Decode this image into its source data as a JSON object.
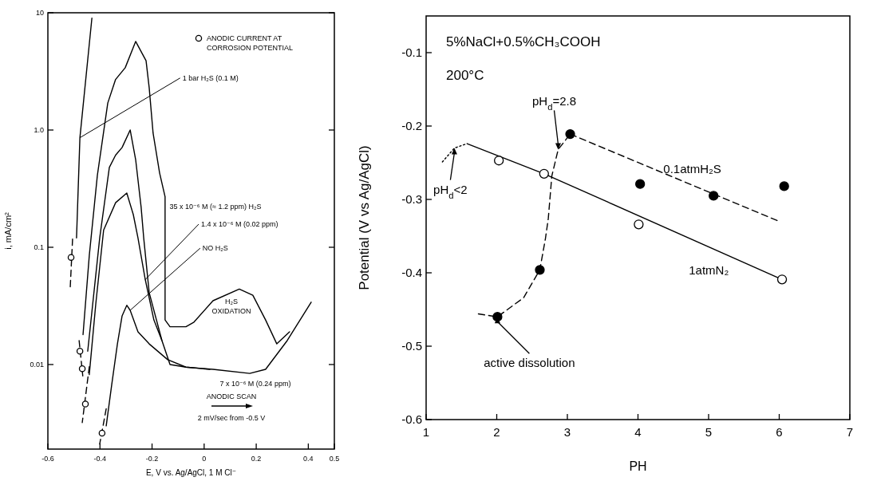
{
  "chart_data": [
    {
      "type": "line",
      "xlabel": "E, V vs. Ag/AgCl, 1 M Cl⁻",
      "ylabel": "i, mA/cm²",
      "log": "y",
      "xlim": [
        -0.6,
        0.5
      ],
      "xticks": [
        -0.6,
        -0.4,
        -0.2,
        0,
        0.2,
        0.4,
        0.5
      ],
      "ylim": [
        0.0019,
        10
      ],
      "yticks": [
        0.01,
        0.1,
        {
          "value": 1,
          "label": "1.0"
        },
        10
      ],
      "legend": "top right",
      "annotations": [
        "H₂S OXIDATION",
        "ANODIC SCAN",
        "2 mV/sec from -0.5 V"
      ],
      "series": [
        {
          "name": "1 bar H₂S (0.1 M)",
          "type": "line",
          "line_style": "solid",
          "color": "#000000",
          "x": [
            -0.49,
            -0.477,
            -0.431
          ],
          "values": [
            0.12,
            0.86,
            9
          ]
        },
        {
          "name": "35 x 10⁻⁶ M (≈ 1.2 ppm) H₂S",
          "type": "line",
          "line_style": "solid",
          "color": "#000000",
          "x": [
            -0.465,
            -0.441,
            -0.41,
            -0.37,
            -0.34,
            -0.303,
            -0.263,
            -0.223,
            -0.211,
            -0.196,
            -0.171,
            -0.15,
            -0.15,
            -0.131,
            -0.07,
            -0.039,
            0.034,
            0.135,
            0.187,
            0.236,
            0.279,
            0.328
          ],
          "values": [
            0.018,
            0.085,
            0.41,
            1.7,
            2.7,
            3.4,
            5.7,
            3.9,
            2.3,
            0.94,
            0.43,
            0.27,
            0.024,
            0.021,
            0.021,
            0.023,
            0.035,
            0.044,
            0.039,
            0.024,
            0.015,
            0.019
          ]
        },
        {
          "name": "7 x 10⁻⁶ M (0.24 ppm)",
          "type": "line",
          "line_style": "solid",
          "color": "#000000",
          "x": [
            -0.447,
            -0.401,
            -0.364,
            -0.34,
            -0.315,
            -0.284,
            -0.263,
            -0.242,
            -0.232,
            -0.211,
            -0.162,
            -0.131,
            -0.07,
            0.034,
            0.175,
            0.236,
            0.319,
            0.411
          ],
          "values": [
            0.013,
            0.12,
            0.48,
            0.61,
            0.71,
            1.0,
            0.56,
            0.22,
            0.12,
            0.041,
            0.016,
            0.01,
            0.0095,
            0.0091,
            0.0084,
            0.0091,
            0.016,
            0.034
          ]
        },
        {
          "name": "1.4 x 10⁻⁶ M (0.02 ppm)",
          "type": "line",
          "line_style": "solid",
          "color": "#000000",
          "x": [
            -0.441,
            -0.416,
            -0.386,
            -0.34,
            -0.297,
            -0.272,
            -0.254,
            -0.226,
            -0.193,
            -0.162
          ],
          "values": [
            0.0082,
            0.033,
            0.14,
            0.24,
            0.29,
            0.19,
            0.12,
            0.053,
            0.024,
            0.016
          ]
        },
        {
          "name": "NO H₂S",
          "type": "line",
          "line_style": "solid",
          "color": "#000000",
          "x": [
            -0.376,
            -0.355,
            -0.333,
            -0.315,
            -0.297,
            -0.284,
            -0.254,
            -0.211,
            -0.14,
            -0.07,
            0.022
          ],
          "values": [
            0.003,
            0.0067,
            0.015,
            0.026,
            0.032,
            0.029,
            0.019,
            0.015,
            0.011,
            0.0095,
            0.0091
          ]
        },
        {
          "type": "line",
          "line_style": "dashed",
          "color": "#000000",
          "x": [
            -0.514,
            -0.505
          ],
          "values": [
            0.046,
            0.12
          ]
        },
        {
          "type": "line",
          "line_style": "dashed",
          "color": "#000000",
          "x": [
            -0.48,
            -0.466
          ],
          "values": [
            0.016,
            0.008
          ]
        },
        {
          "type": "line",
          "line_style": "dashed",
          "color": "#000000",
          "x": [
            -0.441,
            -0.468
          ],
          "values": [
            0.0096,
            0.0032
          ]
        },
        {
          "type": "line",
          "line_style": "dashed",
          "color": "#000000",
          "x": [
            -0.376,
            -0.401
          ],
          "values": [
            0.0042,
            0.0021
          ]
        },
        {
          "name": "ANODIC CURRENT AT CORROSION POTENTIAL",
          "type": "scatter",
          "marker": "circle",
          "color": "#ffffff",
          "x": [
            -0.511,
            -0.477,
            -0.468,
            -0.456,
            -0.392
          ],
          "values": [
            0.082,
            0.013,
            0.0092,
            0.0046,
            0.0026
          ]
        }
      ]
    },
    {
      "type": "line",
      "title": "5%NaCl+0.5%CH₃COOH",
      "subtitle": "200°C",
      "xlabel": "PH",
      "ylabel": "Potential (V vs Ag/AgCl)",
      "xlim": [
        1,
        7
      ],
      "xticks": [
        1,
        2,
        3,
        4,
        5,
        6,
        7
      ],
      "ylim": [
        -0.6,
        -0.05
      ],
      "yticks": [
        -0.6,
        -0.5,
        -0.4,
        -0.3,
        -0.2,
        -0.1
      ],
      "annotations": [
        {
          "text": "pH$_{d}$=2.8",
          "x": 2.87,
          "y": -0.232
        },
        {
          "text": "pH$_{d}$<2",
          "x": 1.4,
          "y": -0.23
        },
        {
          "text": "active dissolution",
          "x": 2.01,
          "y": -0.46
        }
      ],
      "series": [
        {
          "name": "1atmN₂",
          "type": "line",
          "line_style": "solid",
          "color": "#000000",
          "x": [
            1.58,
            2.67,
            6.04
          ],
          "values": [
            -0.224,
            -0.265,
            -0.409
          ]
        },
        {
          "type": "line",
          "line_style": "dotted",
          "color": "#000000",
          "x": [
            1.23,
            1.4,
            1.58
          ],
          "values": [
            -0.249,
            -0.23,
            -0.224
          ]
        },
        {
          "name": "0.1atmH₂S",
          "type": "line",
          "line_style": "dashed",
          "color": "#000000",
          "x": [
            3.04,
            6.0
          ],
          "values": [
            -0.211,
            -0.33
          ]
        },
        {
          "type": "line",
          "line_style": "dashed",
          "color": "#000000",
          "x": [
            1.74,
            2.01,
            2.38,
            2.61,
            2.69,
            2.73,
            2.78,
            2.87,
            3.04
          ],
          "values": [
            -0.456,
            -0.46,
            -0.434,
            -0.396,
            -0.353,
            -0.326,
            -0.268,
            -0.232,
            -0.211
          ]
        },
        {
          "type": "scatter",
          "marker": "circle",
          "color": "#ffffff",
          "x": [
            2.03,
            2.67,
            4.01,
            6.04
          ],
          "values": [
            -0.247,
            -0.265,
            -0.334,
            -0.409
          ]
        },
        {
          "type": "scatter",
          "marker": "circle",
          "color": "#000000",
          "x": [
            2.01,
            2.61,
            3.04,
            4.03,
            5.07,
            6.07
          ],
          "values": [
            -0.46,
            -0.396,
            -0.211,
            -0.279,
            -0.295,
            -0.282
          ]
        }
      ]
    }
  ]
}
